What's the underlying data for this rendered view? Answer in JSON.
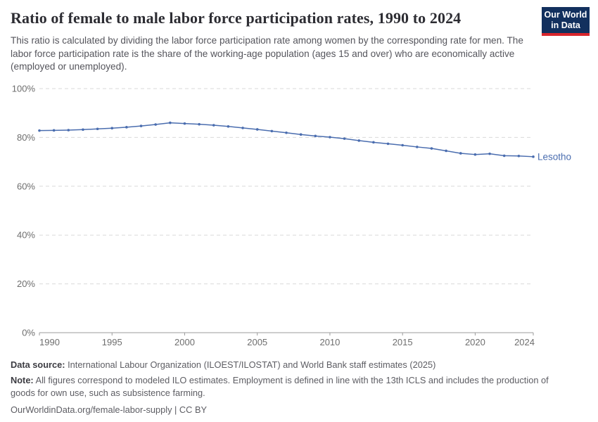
{
  "header": {
    "title": "Ratio of female to male labor force participation rates, 1990 to 2024",
    "subtitle": "This ratio is calculated by dividing the labor force participation rate among women by the corresponding rate for men. The labor force participation rate is the share of the working-age population (ages 15 and over) who are economically active (employed or unemployed).",
    "logo": {
      "line1": "Our World",
      "line2": "in Data"
    }
  },
  "chart_data": {
    "type": "line",
    "title": "Ratio of female to male labor force participation rates, 1990 to 2024",
    "xlabel": "",
    "ylabel": "",
    "xlim": [
      1990,
      2024
    ],
    "ylim": [
      0,
      100
    ],
    "grid": "horizontal-dashed",
    "legend_position": "end-of-line-label",
    "x_ticks": [
      1990,
      1995,
      2000,
      2005,
      2010,
      2015,
      2020,
      2024
    ],
    "y_tick_values": [
      0,
      20,
      40,
      60,
      80,
      100
    ],
    "y_tick_labels": [
      "0%",
      "20%",
      "40%",
      "60%",
      "80%",
      "100%"
    ],
    "series": [
      {
        "name": "Lesotho",
        "color": "#4a6daf",
        "x": [
          1990,
          1991,
          1992,
          1993,
          1994,
          1995,
          1996,
          1997,
          1998,
          1999,
          2000,
          2001,
          2002,
          2003,
          2004,
          2005,
          2006,
          2007,
          2008,
          2009,
          2010,
          2011,
          2012,
          2013,
          2014,
          2015,
          2016,
          2017,
          2018,
          2019,
          2020,
          2021,
          2022,
          2023,
          2024
        ],
        "values": [
          82.8,
          82.9,
          83.0,
          83.2,
          83.5,
          83.8,
          84.2,
          84.7,
          85.3,
          86.0,
          85.7,
          85.4,
          85.0,
          84.5,
          83.9,
          83.3,
          82.6,
          81.9,
          81.2,
          80.6,
          80.1,
          79.5,
          78.7,
          78.0,
          77.4,
          76.8,
          76.1,
          75.5,
          74.5,
          73.5,
          73.0,
          73.3,
          72.5,
          72.4,
          72.1
        ]
      }
    ]
  },
  "footer": {
    "data_source_label": "Data source:",
    "data_source_text": " International Labour Organization (ILOEST/ILOSTAT) and World Bank staff estimates (2025)",
    "note_label": "Note:",
    "note_text": " All figures correspondond to modeled ILO estimates. Employment is defined in line with the 13th ICLS and includes the production of goods for own use, such as subsistence farming.",
    "citation": "OurWorldinData.org/female-labor-supply | CC BY"
  },
  "colors": {
    "accent_line": "#4a6daf",
    "logo_bg": "#12305e",
    "logo_red": "#d8252c",
    "grid": "#dadada",
    "axis": "#9b9b9b",
    "tick_label": "#6e6e6e"
  }
}
